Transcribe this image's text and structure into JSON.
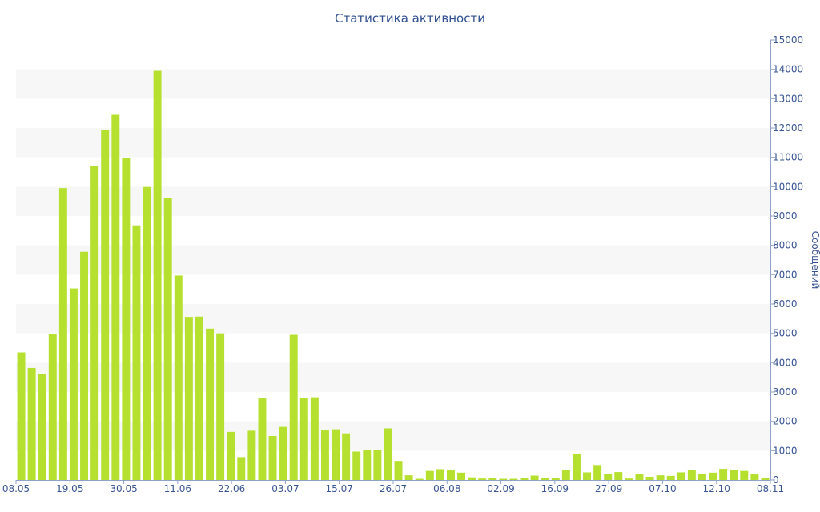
{
  "chart_data": {
    "type": "bar",
    "title": "Статистика активности",
    "ylabel": "Сообщений",
    "xlabel": "",
    "ylim": [
      0,
      15000
    ],
    "y_ticks": [
      0,
      1000,
      2000,
      3000,
      4000,
      5000,
      6000,
      7000,
      8000,
      9000,
      10000,
      11000,
      12000,
      13000,
      14000,
      15000
    ],
    "y_axis_position": "right",
    "grid": "alternating horizontal bands",
    "bar_color": "#b5e02f",
    "band_color": "#f7f7f7",
    "text_color": "#3a5594",
    "x_tick_labels": [
      "08.05",
      "19.05",
      "30.05",
      "11.06",
      "22.06",
      "03.07",
      "15.07",
      "26.07",
      "06.08",
      "02.09",
      "16.09",
      "27.09",
      "07.10",
      "12.10",
      "08.11"
    ],
    "values": [
      4350,
      3820,
      3600,
      4980,
      9950,
      6530,
      7780,
      10700,
      11920,
      12450,
      10980,
      8680,
      9990,
      13950,
      9600,
      6970,
      5560,
      5570,
      5160,
      5000,
      1640,
      780,
      1680,
      2780,
      1500,
      1810,
      4950,
      2790,
      2820,
      1690,
      1730,
      1590,
      970,
      1010,
      1030,
      1760,
      650,
      160,
      40,
      310,
      370,
      350,
      250,
      90,
      50,
      60,
      40,
      40,
      60,
      150,
      80,
      70,
      340,
      900,
      260,
      510,
      220,
      270,
      50,
      200,
      110,
      160,
      140,
      260,
      330,
      200,
      250,
      380,
      330,
      310,
      190,
      60
    ]
  }
}
